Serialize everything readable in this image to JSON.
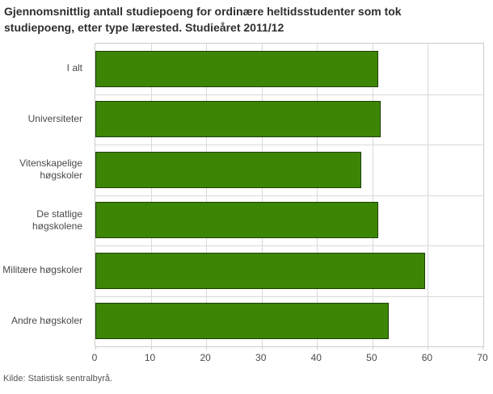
{
  "title": "Gjennomsnittlig antall studiepoeng for ordinære heltidsstudenter som tok studiepoeng, etter type lærested. Studieåret 2011/12",
  "source": "Kilde: Statistisk sentralbyrå.",
  "colors": {
    "background": "#ffffff",
    "bar_fill": "#3d8505",
    "bar_border": "#1d4000",
    "gridline": "#d9d9d9",
    "plot_border": "#cccccc",
    "title_text": "#2e2e2e",
    "label_text": "#4a4a4a",
    "source_text": "#555555"
  },
  "chart_data": {
    "type": "bar",
    "orientation": "horizontal",
    "title": "Gjennomsnittlig antall studiepoeng for ordinære heltidsstudenter som tok studiepoeng, etter type lærested. Studieåret 2011/12",
    "categories": [
      "I alt",
      "Universiteter",
      "Vitenskapelige høgskoler",
      "De statlige høgskolene",
      "Militære høgskoler",
      "Andre høgskoler"
    ],
    "values": [
      51,
      51.5,
      48,
      51,
      59.5,
      53
    ],
    "xlabel": "",
    "ylabel": "",
    "xlim": [
      0,
      70
    ],
    "xticks": [
      0,
      10,
      20,
      30,
      40,
      50,
      60,
      70
    ],
    "grid": true,
    "legend": false
  }
}
